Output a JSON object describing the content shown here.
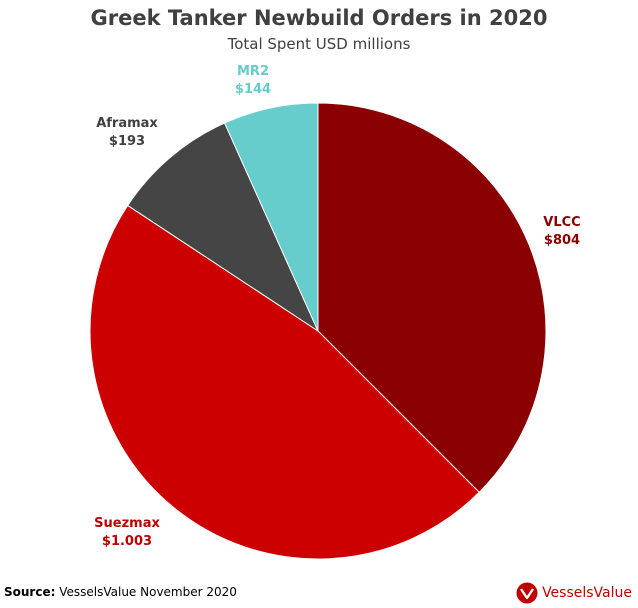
{
  "chart_data": {
    "type": "pie",
    "title": "Greek Tanker Newbuild Orders in 2020",
    "subtitle": "Total Spent USD millions",
    "start_angle_deg": 0,
    "direction": "clockwise",
    "slices": [
      {
        "name": "VLCC",
        "value": 804,
        "value_label": "$804",
        "color": "#8b0000",
        "label_color": "#8b0000"
      },
      {
        "name": "Suezmax",
        "value": 1003,
        "value_label": "$1.003",
        "color": "#cc0000",
        "label_color": "#c00000"
      },
      {
        "name": "Aframax",
        "value": 193,
        "value_label": "$193",
        "color": "#454545",
        "label_color": "#404040"
      },
      {
        "name": "MR2",
        "value": 144,
        "value_label": "$144",
        "color": "#66cccc",
        "label_color": "#66cccc"
      }
    ]
  },
  "footer": {
    "source_label": "Source:",
    "source_text": " VesselsValue November 2020",
    "brand_name": "VesselsValue",
    "brand_icon": "vesselsvalue-logo-icon",
    "brand_color": "#c00000"
  }
}
